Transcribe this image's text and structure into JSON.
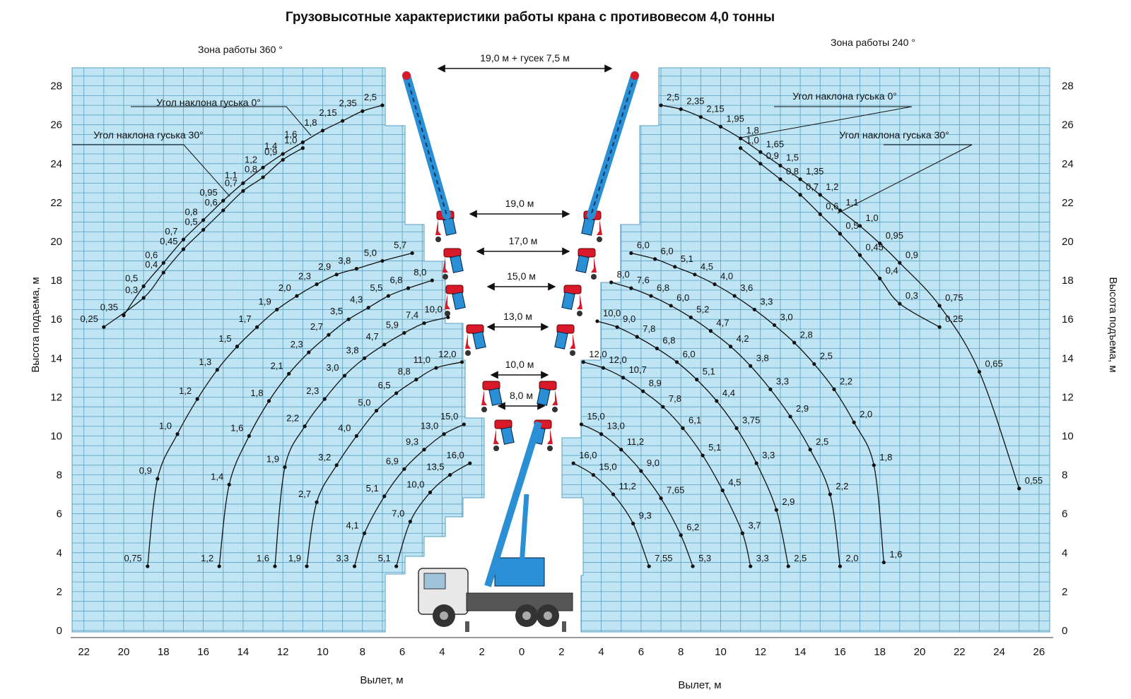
{
  "chart_data": {
    "type": "line",
    "title": "Грузовысотные характеристики работы крана с противовесом 4,0 тонны",
    "xlabel": "Вылет, м",
    "ylabel": "Высота подъема, м",
    "ylim": [
      0,
      29
    ],
    "grid": true,
    "y_ticks": [
      0,
      2,
      4,
      6,
      8,
      10,
      12,
      14,
      16,
      18,
      20,
      22,
      24,
      26,
      28
    ],
    "x_ticks_left": [
      22,
      20,
      18,
      16,
      14,
      12,
      10,
      8,
      6,
      4,
      2,
      0
    ],
    "x_ticks_right": [
      2,
      4,
      6,
      8,
      10,
      12,
      14,
      16,
      18,
      20,
      22,
      24,
      26
    ],
    "annotations": {
      "zone_left": "Зона работы 360 °",
      "zone_right": "Зона работы 240 °",
      "jib_0": "Угол наклона гуська 0°",
      "jib_30": "Угол наклона гуська 30°"
    },
    "booms": [
      {
        "label": "19,0 м + гусек 7,5 м",
        "y": 28.5
      },
      {
        "label": "19,0 м",
        "y": 21.5
      },
      {
        "label": "17,0 м",
        "y": 19.2
      },
      {
        "label": "15,0 м",
        "y": 17.7
      },
      {
        "label": "13,0 м",
        "y": 15.7
      },
      {
        "label": "10,0 м",
        "y": 13.2
      },
      {
        "label": "8,0 м",
        "y": 11.2
      }
    ],
    "series_left": [
      {
        "name": "Угол наклона гуська 0°",
        "points": [
          {
            "x": 7.0,
            "y": 27.0,
            "load": "2,5"
          },
          {
            "x": 8.0,
            "y": 26.7,
            "load": "2,35"
          },
          {
            "x": 9.0,
            "y": 26.2,
            "load": "2,15"
          },
          {
            "x": 10.0,
            "y": 25.7,
            "load": "1,8"
          },
          {
            "x": 11.0,
            "y": 25.1,
            "load": "1,6"
          },
          {
            "x": 12.0,
            "y": 24.5,
            "load": "1,4"
          },
          {
            "x": 13.0,
            "y": 23.8,
            "load": "1,2"
          },
          {
            "x": 14.0,
            "y": 23.0,
            "load": "1,1"
          },
          {
            "x": 15.0,
            "y": 22.1,
            "load": "0,95"
          },
          {
            "x": 16.0,
            "y": 21.1,
            "load": "0,8"
          },
          {
            "x": 17.0,
            "y": 20.1,
            "load": "0,7"
          },
          {
            "x": 18.0,
            "y": 18.9,
            "load": "0,6"
          },
          {
            "x": 19.0,
            "y": 17.7,
            "load": "0,5"
          },
          {
            "x": 20.0,
            "y": 16.2,
            "load": "0,35"
          }
        ]
      },
      {
        "name": "Угол наклона гуська 30°",
        "points": [
          {
            "x": 11.0,
            "y": 24.8,
            "load": "1,0"
          },
          {
            "x": 12.0,
            "y": 24.2,
            "load": "0,9"
          },
          {
            "x": 13.0,
            "y": 23.3,
            "load": "0,8"
          },
          {
            "x": 14.0,
            "y": 22.6,
            "load": "0,7"
          },
          {
            "x": 15.0,
            "y": 21.6,
            "load": "0,6"
          },
          {
            "x": 16.0,
            "y": 20.6,
            "load": "0,5"
          },
          {
            "x": 17.0,
            "y": 19.6,
            "load": "0,45"
          },
          {
            "x": 18.0,
            "y": 18.4,
            "load": "0,4"
          },
          {
            "x": 19.0,
            "y": 17.1,
            "load": "0,3"
          },
          {
            "x": 21.0,
            "y": 15.6,
            "load": "0,25"
          }
        ]
      },
      {
        "name": "19,0 м",
        "points": [
          {
            "x": 5.5,
            "y": 19.4,
            "load": "5,7"
          },
          {
            "x": 7.0,
            "y": 19.0,
            "load": "5,0"
          },
          {
            "x": 8.3,
            "y": 18.6,
            "load": "3,8"
          },
          {
            "x": 9.3,
            "y": 18.3,
            "load": "2,9"
          },
          {
            "x": 10.3,
            "y": 17.8,
            "load": "2,3"
          },
          {
            "x": 11.3,
            "y": 17.2,
            "load": "2,0"
          },
          {
            "x": 12.3,
            "y": 16.5,
            "load": "1,9"
          },
          {
            "x": 13.3,
            "y": 15.6,
            "load": "1,7"
          },
          {
            "x": 14.3,
            "y": 14.6,
            "load": "1,5"
          },
          {
            "x": 15.3,
            "y": 13.4,
            "load": "1,3"
          },
          {
            "x": 16.3,
            "y": 11.9,
            "load": "1,2"
          },
          {
            "x": 17.3,
            "y": 10.1,
            "load": "1,0"
          },
          {
            "x": 18.3,
            "y": 7.8,
            "load": "0,9"
          },
          {
            "x": 18.8,
            "y": 3.3,
            "load": "0,75"
          }
        ]
      },
      {
        "name": "17,0 м",
        "points": [
          {
            "x": 4.5,
            "y": 18.0,
            "load": "8,0"
          },
          {
            "x": 5.7,
            "y": 17.6,
            "load": "6,8"
          },
          {
            "x": 6.7,
            "y": 17.2,
            "load": "5,5"
          },
          {
            "x": 7.7,
            "y": 16.6,
            "load": "4,3"
          },
          {
            "x": 8.7,
            "y": 16.0,
            "load": "3,5"
          },
          {
            "x": 9.7,
            "y": 15.2,
            "load": "2,7"
          },
          {
            "x": 10.7,
            "y": 14.3,
            "load": "2,3"
          },
          {
            "x": 11.7,
            "y": 13.2,
            "load": "2,1"
          },
          {
            "x": 12.7,
            "y": 11.8,
            "load": "1,8"
          },
          {
            "x": 13.7,
            "y": 10.0,
            "load": "1,6"
          },
          {
            "x": 14.7,
            "y": 7.5,
            "load": "1,4"
          },
          {
            "x": 15.2,
            "y": 3.3,
            "load": "1,2"
          }
        ]
      },
      {
        "name": "15,0 м",
        "points": [
          {
            "x": 3.7,
            "y": 16.1,
            "load": "10,0"
          },
          {
            "x": 4.9,
            "y": 15.8,
            "load": "7,4"
          },
          {
            "x": 5.9,
            "y": 15.3,
            "load": "5,9"
          },
          {
            "x": 6.9,
            "y": 14.7,
            "load": "4,7"
          },
          {
            "x": 7.9,
            "y": 14.0,
            "load": "3,8"
          },
          {
            "x": 8.9,
            "y": 13.1,
            "load": "3,0"
          },
          {
            "x": 9.9,
            "y": 11.9,
            "load": "2,3"
          },
          {
            "x": 10.9,
            "y": 10.5,
            "load": "2,2"
          },
          {
            "x": 11.9,
            "y": 8.4,
            "load": "1,9"
          },
          {
            "x": 12.4,
            "y": 3.3,
            "load": "1,6"
          }
        ]
      },
      {
        "name": "13,0 м",
        "points": [
          {
            "x": 3.0,
            "y": 13.8,
            "load": "12,0"
          },
          {
            "x": 4.3,
            "y": 13.5,
            "load": "11,0"
          },
          {
            "x": 5.3,
            "y": 12.9,
            "load": "8,8"
          },
          {
            "x": 6.3,
            "y": 12.2,
            "load": "6,5"
          },
          {
            "x": 7.3,
            "y": 11.3,
            "load": "5,0"
          },
          {
            "x": 8.3,
            "y": 10.0,
            "load": "4,0"
          },
          {
            "x": 9.3,
            "y": 8.5,
            "load": "3,2"
          },
          {
            "x": 10.3,
            "y": 6.6,
            "load": "2,7"
          },
          {
            "x": 10.8,
            "y": 3.3,
            "load": "1,9"
          }
        ]
      },
      {
        "name": "10,0 м",
        "points": [
          {
            "x": 2.9,
            "y": 10.6,
            "load": "15,0"
          },
          {
            "x": 3.9,
            "y": 10.1,
            "load": "13,0"
          },
          {
            "x": 4.9,
            "y": 9.3,
            "load": "9,3"
          },
          {
            "x": 5.9,
            "y": 8.3,
            "load": "6,9"
          },
          {
            "x": 6.9,
            "y": 6.9,
            "load": "5,1"
          },
          {
            "x": 7.9,
            "y": 5.0,
            "load": "4,1"
          },
          {
            "x": 8.4,
            "y": 3.3,
            "load": "3,3"
          }
        ]
      },
      {
        "name": "8,0 м",
        "points": [
          {
            "x": 2.6,
            "y": 8.6,
            "load": "16,0"
          },
          {
            "x": 3.6,
            "y": 8.0,
            "load": "13,5"
          },
          {
            "x": 4.6,
            "y": 7.1,
            "load": "10,0"
          },
          {
            "x": 5.6,
            "y": 5.6,
            "load": "7,0"
          },
          {
            "x": 6.3,
            "y": 3.3,
            "load": "5,1"
          }
        ]
      }
    ],
    "series_right": [
      {
        "name": "Угол наклона гуська 0°",
        "points": [
          {
            "x": 7.0,
            "y": 27.0,
            "load": "2,5"
          },
          {
            "x": 8.0,
            "y": 26.8,
            "load": "2,35"
          },
          {
            "x": 9.0,
            "y": 26.4,
            "load": "2,15"
          },
          {
            "x": 10.0,
            "y": 25.9,
            "load": "1,95"
          },
          {
            "x": 11.0,
            "y": 25.3,
            "load": "1,8"
          },
          {
            "x": 12.0,
            "y": 24.6,
            "load": "1,65"
          },
          {
            "x": 13.0,
            "y": 23.9,
            "load": "1,5"
          },
          {
            "x": 14.0,
            "y": 23.2,
            "load": "1,35"
          },
          {
            "x": 15.0,
            "y": 22.4,
            "load": "1,2"
          },
          {
            "x": 16.0,
            "y": 21.6,
            "load": "1,1"
          },
          {
            "x": 17.0,
            "y": 20.8,
            "load": "1,0"
          },
          {
            "x": 18.0,
            "y": 19.9,
            "load": "0,95"
          },
          {
            "x": 19.0,
            "y": 18.9,
            "load": "0,9"
          },
          {
            "x": 21.0,
            "y": 16.7,
            "load": "0,75"
          },
          {
            "x": 23.0,
            "y": 13.3,
            "load": "0,65"
          },
          {
            "x": 25.0,
            "y": 7.3,
            "load": "0,55"
          }
        ]
      },
      {
        "name": "Угол наклона гуська 30°",
        "points": [
          {
            "x": 11.0,
            "y": 24.8,
            "load": "1,0"
          },
          {
            "x": 12.0,
            "y": 24.0,
            "load": "0,9"
          },
          {
            "x": 13.0,
            "y": 23.2,
            "load": "0,8"
          },
          {
            "x": 14.0,
            "y": 22.4,
            "load": "0,7"
          },
          {
            "x": 15.0,
            "y": 21.4,
            "load": "0,6"
          },
          {
            "x": 16.0,
            "y": 20.4,
            "load": "0,5"
          },
          {
            "x": 17.0,
            "y": 19.3,
            "load": "0,45"
          },
          {
            "x": 18.0,
            "y": 18.1,
            "load": "0,4"
          },
          {
            "x": 19.0,
            "y": 16.8,
            "load": "0,3"
          },
          {
            "x": 21.0,
            "y": 15.6,
            "load": "0,25"
          }
        ]
      },
      {
        "name": "19,0 м",
        "points": [
          {
            "x": 5.5,
            "y": 19.4,
            "load": "6,0"
          },
          {
            "x": 6.7,
            "y": 19.1,
            "load": "6,0"
          },
          {
            "x": 7.7,
            "y": 18.7,
            "load": "5,1"
          },
          {
            "x": 8.7,
            "y": 18.3,
            "load": "4,5"
          },
          {
            "x": 9.7,
            "y": 17.8,
            "load": "4,0"
          },
          {
            "x": 10.7,
            "y": 17.2,
            "load": "3,6"
          },
          {
            "x": 11.7,
            "y": 16.5,
            "load": "3,3"
          },
          {
            "x": 12.7,
            "y": 15.7,
            "load": "3,0"
          },
          {
            "x": 13.7,
            "y": 14.8,
            "load": "2,8"
          },
          {
            "x": 14.7,
            "y": 13.7,
            "load": "2,5"
          },
          {
            "x": 15.7,
            "y": 12.4,
            "load": "2,2"
          },
          {
            "x": 16.7,
            "y": 10.7,
            "load": "2,0"
          },
          {
            "x": 17.7,
            "y": 8.5,
            "load": "1,8"
          },
          {
            "x": 18.2,
            "y": 3.5,
            "load": "1,6"
          }
        ]
      },
      {
        "name": "17,0 м",
        "points": [
          {
            "x": 4.5,
            "y": 17.9,
            "load": "8,0"
          },
          {
            "x": 5.5,
            "y": 17.6,
            "load": "7,6"
          },
          {
            "x": 6.5,
            "y": 17.2,
            "load": "6,8"
          },
          {
            "x": 7.5,
            "y": 16.7,
            "load": "6,0"
          },
          {
            "x": 8.5,
            "y": 16.1,
            "load": "5,2"
          },
          {
            "x": 9.5,
            "y": 15.4,
            "load": "4,7"
          },
          {
            "x": 10.5,
            "y": 14.6,
            "load": "4,2"
          },
          {
            "x": 11.5,
            "y": 13.6,
            "load": "3,8"
          },
          {
            "x": 12.5,
            "y": 12.4,
            "load": "3,3"
          },
          {
            "x": 13.5,
            "y": 11.0,
            "load": "2,9"
          },
          {
            "x": 14.5,
            "y": 9.3,
            "load": "2,5"
          },
          {
            "x": 15.5,
            "y": 7.0,
            "load": "2,2"
          },
          {
            "x": 16.0,
            "y": 3.3,
            "load": "2,0"
          }
        ]
      },
      {
        "name": "15,0 м",
        "points": [
          {
            "x": 3.8,
            "y": 15.9,
            "load": "10,0"
          },
          {
            "x": 4.8,
            "y": 15.6,
            "load": "9,0"
          },
          {
            "x": 5.8,
            "y": 15.1,
            "load": "7,8"
          },
          {
            "x": 6.8,
            "y": 14.5,
            "load": "6,8"
          },
          {
            "x": 7.8,
            "y": 13.8,
            "load": "6,0"
          },
          {
            "x": 8.8,
            "y": 12.9,
            "load": "5,1"
          },
          {
            "x": 9.8,
            "y": 11.8,
            "load": "4,4"
          },
          {
            "x": 10.8,
            "y": 10.4,
            "load": "3,75"
          },
          {
            "x": 11.8,
            "y": 8.6,
            "load": "3,3"
          },
          {
            "x": 12.8,
            "y": 6.2,
            "load": "2,9"
          },
          {
            "x": 13.4,
            "y": 3.3,
            "load": "2,5"
          }
        ]
      },
      {
        "name": "13,0 м",
        "points": [
          {
            "x": 3.1,
            "y": 13.8,
            "load": "12,0"
          },
          {
            "x": 4.1,
            "y": 13.5,
            "load": "12,0"
          },
          {
            "x": 5.1,
            "y": 13.0,
            "load": "10,7"
          },
          {
            "x": 6.1,
            "y": 12.3,
            "load": "8,9"
          },
          {
            "x": 7.1,
            "y": 11.5,
            "load": "7,8"
          },
          {
            "x": 8.1,
            "y": 10.4,
            "load": "6,1"
          },
          {
            "x": 9.1,
            "y": 9.0,
            "load": "5,1"
          },
          {
            "x": 10.1,
            "y": 7.2,
            "load": "4,5"
          },
          {
            "x": 11.1,
            "y": 5.0,
            "load": "3,7"
          },
          {
            "x": 11.5,
            "y": 3.3,
            "load": "3,3"
          }
        ]
      },
      {
        "name": "10,0 м",
        "points": [
          {
            "x": 3.0,
            "y": 10.6,
            "load": "15,0"
          },
          {
            "x": 4.0,
            "y": 10.1,
            "load": "13,0"
          },
          {
            "x": 5.0,
            "y": 9.3,
            "load": "11,2"
          },
          {
            "x": 6.0,
            "y": 8.2,
            "load": "9,0"
          },
          {
            "x": 7.0,
            "y": 6.8,
            "load": "7,65"
          },
          {
            "x": 8.0,
            "y": 4.9,
            "load": "6,2"
          },
          {
            "x": 8.6,
            "y": 3.3,
            "load": "5,3"
          }
        ]
      },
      {
        "name": "8,0 м",
        "points": [
          {
            "x": 2.6,
            "y": 8.6,
            "load": "16,0"
          },
          {
            "x": 3.6,
            "y": 8.0,
            "load": "15,0"
          },
          {
            "x": 4.6,
            "y": 7.0,
            "load": "11,2"
          },
          {
            "x": 5.6,
            "y": 5.5,
            "load": "9,3"
          },
          {
            "x": 6.4,
            "y": 3.3,
            "load": "7,55"
          }
        ]
      }
    ]
  },
  "colors": {
    "grid_fill": "#bfe4f3",
    "grid_line": "#5a9fc0",
    "boom_blue": "#2b8fd6",
    "boom_red": "#d8192a",
    "curve": "#111111"
  }
}
